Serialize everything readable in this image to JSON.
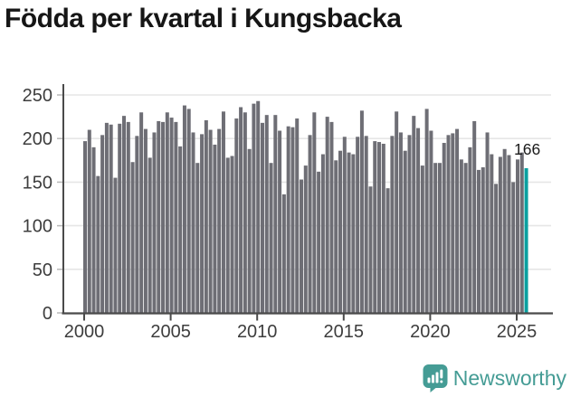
{
  "title": "Födda per kvartal i Kungsbacka",
  "annotation": {
    "last_value_label": "166"
  },
  "logo": {
    "text": "Newsworthy",
    "icon": "newsworthy-speech-bubble-bar-chart-icon"
  },
  "colors": {
    "bar": "#6e6e75",
    "highlight_bar": "#0aa0a0",
    "title_text": "#161616",
    "axis_text": "#3d3d3d",
    "grid_line": "#e6e6e6",
    "axis_line": "#4a4a4a",
    "tick_dash": "#b8b8b8",
    "logo_teal": "#459c95",
    "annotation_text": "#1a1a1a"
  },
  "chart_data": {
    "type": "bar",
    "title": "Födda per kvartal i Kungsbacka",
    "xlabel": "",
    "ylabel": "",
    "ylim": [
      0,
      250
    ],
    "grid": "horizontal",
    "legend": "none",
    "x_tick_labels": [
      "2000",
      "2005",
      "2010",
      "2015",
      "2020",
      "2025"
    ],
    "y_tick_labels": [
      "0",
      "50",
      "100",
      "150",
      "200",
      "250"
    ],
    "highlight_last": true,
    "highlight_value": 166,
    "categories": [
      "2000 Q1",
      "2000 Q2",
      "2000 Q3",
      "2000 Q4",
      "2001 Q1",
      "2001 Q2",
      "2001 Q3",
      "2001 Q4",
      "2002 Q1",
      "2002 Q2",
      "2002 Q3",
      "2002 Q4",
      "2003 Q1",
      "2003 Q2",
      "2003 Q3",
      "2003 Q4",
      "2004 Q1",
      "2004 Q2",
      "2004 Q3",
      "2004 Q4",
      "2005 Q1",
      "2005 Q2",
      "2005 Q3",
      "2005 Q4",
      "2006 Q1",
      "2006 Q2",
      "2006 Q3",
      "2006 Q4",
      "2007 Q1",
      "2007 Q2",
      "2007 Q3",
      "2007 Q4",
      "2008 Q1",
      "2008 Q2",
      "2008 Q3",
      "2008 Q4",
      "2009 Q1",
      "2009 Q2",
      "2009 Q3",
      "2009 Q4",
      "2010 Q1",
      "2010 Q2",
      "2010 Q3",
      "2010 Q4",
      "2011 Q1",
      "2011 Q2",
      "2011 Q3",
      "2011 Q4",
      "2012 Q1",
      "2012 Q2",
      "2012 Q3",
      "2012 Q4",
      "2013 Q1",
      "2013 Q2",
      "2013 Q3",
      "2013 Q4",
      "2014 Q1",
      "2014 Q2",
      "2014 Q3",
      "2014 Q4",
      "2015 Q1",
      "2015 Q2",
      "2015 Q3",
      "2015 Q4",
      "2016 Q1",
      "2016 Q2",
      "2016 Q3",
      "2016 Q4",
      "2017 Q1",
      "2017 Q2",
      "2017 Q3",
      "2017 Q4",
      "2018 Q1",
      "2018 Q2",
      "2018 Q3",
      "2018 Q4",
      "2019 Q1",
      "2019 Q2",
      "2019 Q3",
      "2019 Q4",
      "2020 Q1",
      "2020 Q2",
      "2020 Q3",
      "2020 Q4",
      "2021 Q1",
      "2021 Q2",
      "2021 Q3",
      "2021 Q4",
      "2022 Q1",
      "2022 Q2",
      "2022 Q3",
      "2022 Q4",
      "2023 Q1",
      "2023 Q2",
      "2023 Q3",
      "2023 Q4",
      "2024 Q1",
      "2024 Q2",
      "2024 Q3",
      "2024 Q4",
      "2025 Q1",
      "2025 Q2",
      "2025 Q3"
    ],
    "values": [
      197,
      210,
      190,
      157,
      204,
      218,
      216,
      155,
      217,
      226,
      219,
      173,
      203,
      230,
      211,
      178,
      207,
      220,
      219,
      230,
      224,
      219,
      191,
      238,
      234,
      207,
      172,
      205,
      221,
      210,
      193,
      211,
      231,
      178,
      180,
      223,
      236,
      230,
      188,
      240,
      243,
      218,
      227,
      172,
      227,
      209,
      136,
      214,
      213,
      223,
      153,
      169,
      204,
      230,
      162,
      182,
      225,
      219,
      175,
      186,
      202,
      184,
      182,
      202,
      232,
      203,
      145,
      197,
      196,
      194,
      143,
      203,
      231,
      207,
      186,
      204,
      226,
      212,
      169,
      234,
      209,
      172,
      172,
      195,
      204,
      206,
      211,
      176,
      172,
      190,
      220,
      164,
      167,
      207,
      182,
      148,
      179,
      188,
      181,
      150,
      176,
      184,
      166
    ]
  }
}
